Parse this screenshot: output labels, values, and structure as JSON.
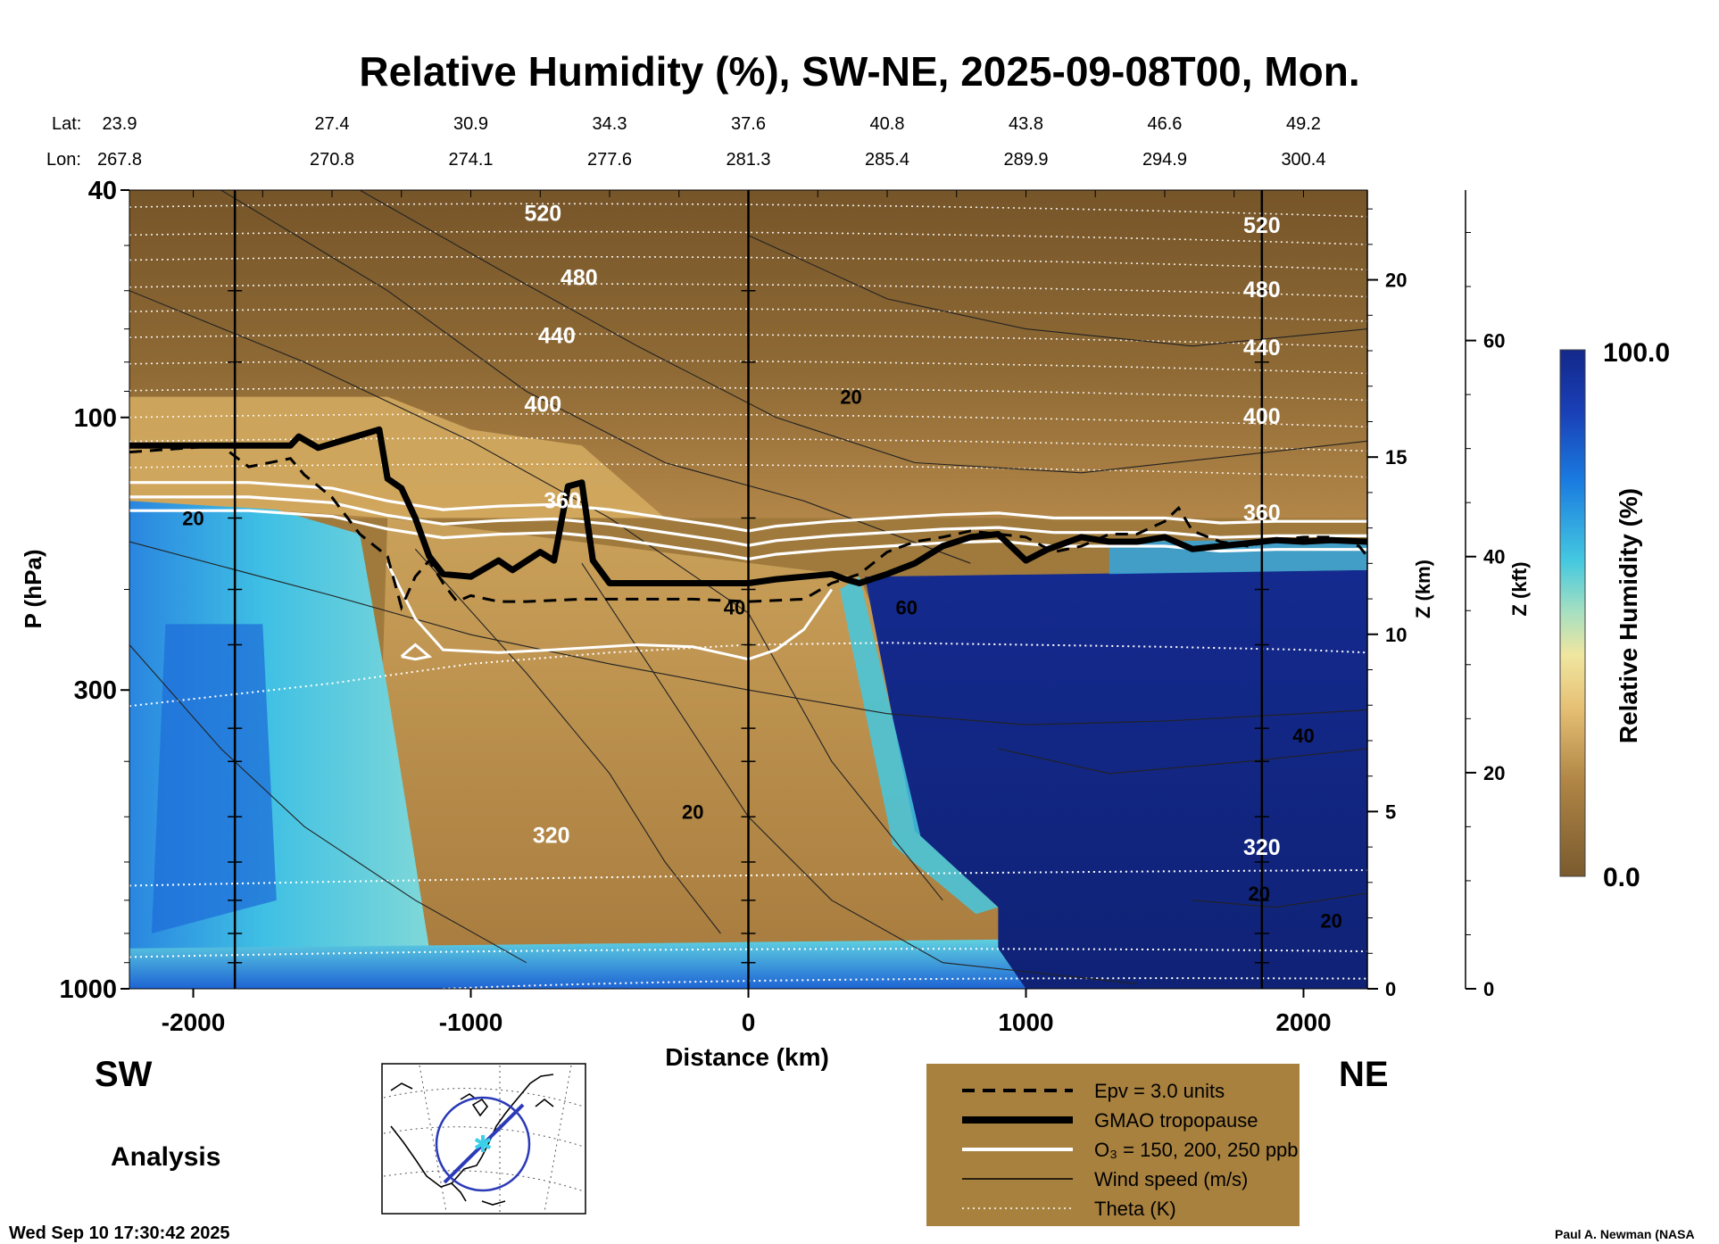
{
  "chart_data": {
    "type": "heatmap",
    "title": "Relative Humidity (%), SW-NE, 2025-09-08T00, Mon.",
    "xlabel": "Distance (km)",
    "ylabel": "P (hPa)",
    "xlim": [
      -2230,
      2230
    ],
    "ylim": [
      1000,
      40
    ],
    "y_scale": "log",
    "x_ticks": [
      -2000,
      -1000,
      0,
      1000,
      2000
    ],
    "x_tick_labels": [
      "-2000",
      "-1000",
      "0",
      "1000",
      "2000"
    ],
    "y_ticks": [
      40,
      100,
      300,
      1000
    ],
    "y_tick_labels": [
      "40",
      "100",
      "300",
      "1000"
    ],
    "lat_label": "Lat:",
    "lon_label": "Lon:",
    "positions": [
      {
        "x": -2000,
        "lat": "23.9",
        "lon": "267.8"
      },
      {
        "x": -1500,
        "lat": "27.4",
        "lon": "270.8"
      },
      {
        "x": -1000,
        "lat": "30.9",
        "lon": "274.1"
      },
      {
        "x": -500,
        "lat": "34.3",
        "lon": "277.6"
      },
      {
        "x": 0,
        "lat": "37.6",
        "lon": "281.3"
      },
      {
        "x": 500,
        "lat": "40.8",
        "lon": "285.4"
      },
      {
        "x": 1000,
        "lat": "43.8",
        "lon": "289.9"
      },
      {
        "x": 1500,
        "lat": "46.6",
        "lon": "294.9"
      },
      {
        "x": 2000,
        "lat": "49.2",
        "lon": "300.4"
      }
    ],
    "z_km_axis": {
      "label": "Z (km)",
      "ticks": [
        0,
        5,
        10,
        15,
        20
      ],
      "tick_labels": [
        "0",
        "5",
        "10",
        "15",
        "20"
      ]
    },
    "z_kft_axis": {
      "label": "Z (kft)",
      "ticks": [
        0,
        20,
        40,
        60
      ],
      "tick_labels": [
        "0",
        "20",
        "40",
        "60"
      ]
    },
    "vertical_lines_x": [
      -1850,
      0,
      1850
    ],
    "colorbar": {
      "label": "Relative Humidity (%)",
      "min": 0.0,
      "max": 100.0,
      "min_label": "0.0",
      "max_label": "100.0"
    },
    "field_description_regions": [
      {
        "x_range": [
          -2230,
          2230
        ],
        "p_range": [
          40,
          150
        ],
        "rh": 5
      },
      {
        "x_range": [
          -2230,
          -1300
        ],
        "p_range": [
          150,
          1000
        ],
        "rh": 60
      },
      {
        "x_range": [
          -1300,
          400
        ],
        "p_range": [
          150,
          850
        ],
        "rh": 12
      },
      {
        "x_range": [
          400,
          2230
        ],
        "p_range": [
          190,
          1000
        ],
        "rh": 95
      },
      {
        "x_range": [
          -2230,
          900
        ],
        "p_range": [
          850,
          1000
        ],
        "rh": 80
      }
    ],
    "theta_contours": [
      {
        "label": "520",
        "p": 44
      },
      {
        "label": "480",
        "p": 57
      },
      {
        "label": "440",
        "p": 72
      },
      {
        "label": "400",
        "p": 95
      },
      {
        "label": "360",
        "p": 140
      },
      {
        "label": "320",
        "p": 540
      }
    ],
    "wind_labels": [
      {
        "label": "20",
        "x": 370,
        "p": 92
      },
      {
        "label": "20",
        "x": -2000,
        "p": 150
      },
      {
        "label": "40",
        "x": -50,
        "p": 215
      },
      {
        "label": "60",
        "x": 570,
        "p": 215
      },
      {
        "label": "40",
        "x": 2000,
        "p": 360
      },
      {
        "label": "20",
        "x": -200,
        "p": 490
      },
      {
        "label": "20",
        "x": 1840,
        "p": 680
      },
      {
        "label": "20",
        "x": 2100,
        "p": 760
      }
    ],
    "series": [
      {
        "name": "GMAO tropopause",
        "x": [
          -2230,
          -1650,
          -1620,
          -1550,
          -1330,
          -1300,
          -1250,
          -1200,
          -1150,
          -1100,
          -1000,
          -900,
          -850,
          -750,
          -700,
          -650,
          -600,
          -560,
          -500,
          -400,
          -300,
          -200,
          -100,
          0,
          100,
          200,
          300,
          350,
          400,
          500,
          600,
          700,
          800,
          900,
          1000,
          1080,
          1200,
          1300,
          1400,
          1500,
          1600,
          1700,
          1800,
          1900,
          2000,
          2100,
          2230
        ],
        "p": [
          112,
          112,
          108,
          113,
          105,
          128,
          133,
          150,
          175,
          188,
          190,
          178,
          185,
          172,
          178,
          132,
          130,
          178,
          195,
          195,
          195,
          195,
          195,
          195,
          192,
          190,
          188,
          192,
          195,
          188,
          180,
          168,
          162,
          160,
          178,
          170,
          162,
          165,
          165,
          162,
          170,
          168,
          166,
          164,
          165,
          164,
          165
        ]
      },
      {
        "name": "Epv = 3.0 units",
        "x": [
          -2230,
          -1900,
          -1800,
          -1650,
          -1600,
          -1500,
          -1400,
          -1300,
          -1250,
          -1200,
          -1150,
          -1100,
          -1050,
          -1000,
          -900,
          -800,
          -600,
          -400,
          -200,
          0,
          200,
          300,
          400,
          500,
          600,
          700,
          800,
          900,
          1000,
          1100,
          1200,
          1300,
          1400,
          1500,
          1550,
          1600,
          1700,
          1800,
          1900,
          2000,
          2100,
          2200,
          2230
        ],
        "p": [
          115,
          112,
          122,
          118,
          126,
          138,
          160,
          175,
          215,
          190,
          178,
          195,
          210,
          205,
          210,
          210,
          208,
          208,
          208,
          210,
          208,
          195,
          188,
          172,
          165,
          162,
          158,
          160,
          162,
          172,
          168,
          160,
          160,
          152,
          144,
          158,
          165,
          168,
          164,
          162,
          162,
          168,
          175
        ]
      },
      {
        "name": "O3 = 150, 200, 250 ppb",
        "x": [
          -2230,
          -1800,
          -1500,
          -1300,
          -1100,
          -900,
          -700,
          -500,
          -300,
          -100,
          0,
          100,
          300,
          500,
          700,
          900,
          1100,
          1300,
          1500,
          1700,
          1900,
          2100,
          2230
        ],
        "p": [
          130,
          130,
          133,
          140,
          145,
          143,
          142,
          145,
          150,
          155,
          158,
          155,
          152,
          150,
          148,
          147,
          150,
          150,
          150,
          153,
          152,
          152,
          152
        ]
      },
      {
        "name": "Wind speed (m/s)",
        "x": [
          -2230,
          -1500,
          -1000,
          -500,
          0,
          500,
          1000,
          1500,
          2000,
          2230
        ],
        "p": [
          165,
          205,
          240,
          270,
          300,
          330,
          345,
          340,
          330,
          325
        ]
      },
      {
        "name": "Theta (K)",
        "x": [
          -2230,
          -1500,
          -1000,
          -500,
          0,
          500,
          1000,
          1500,
          2000,
          2230
        ],
        "p": [
          320,
          292,
          270,
          258,
          250,
          248,
          250,
          252,
          255,
          258
        ]
      }
    ],
    "legend": {
      "placement": "bottom-right",
      "entries": [
        {
          "label": "Epv = 3.0 units",
          "style": "dashed-black"
        },
        {
          "label": "GMAO tropopause",
          "style": "thick-black"
        },
        {
          "label": "O₃ = 150, 200, 250 ppb",
          "style": "white"
        },
        {
          "label": "Wind speed (m/s)",
          "style": "thin-black"
        },
        {
          "label": "Theta (K)",
          "style": "dotted-white"
        }
      ]
    }
  },
  "labels": {
    "sw": "SW",
    "ne": "NE",
    "analysis": "Analysis",
    "timestamp": "Wed Sep 10 17:30:42 2025",
    "credit": "Paul A. Newman (NASA"
  },
  "colors": {
    "brown_dark": "#7a5a2e",
    "brown_mid": "#a0783c",
    "tan": "#c89a55",
    "light_tan": "#e6c074",
    "cyan": "#44c8e0",
    "blue": "#1a6cd6",
    "navy": "#13288a",
    "legend_bg": "#a8813f"
  }
}
